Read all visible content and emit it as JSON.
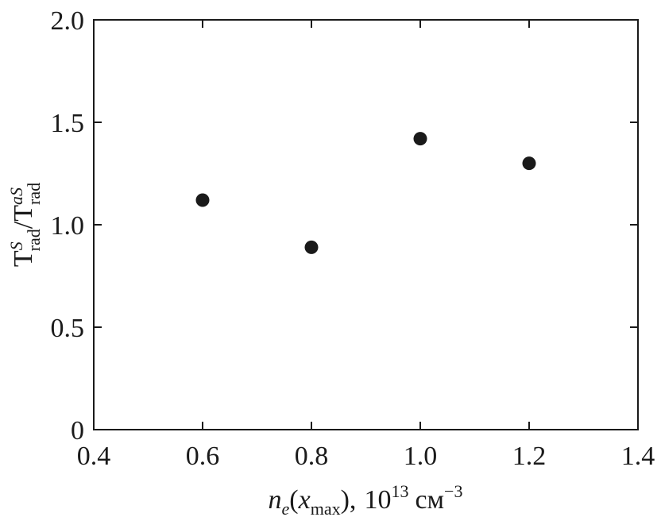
{
  "chart_data": {
    "type": "scatter",
    "x": [
      0.6,
      0.8,
      1.0,
      1.2
    ],
    "y": [
      1.12,
      0.89,
      1.42,
      1.3
    ],
    "xlim": [
      0.4,
      1.4
    ],
    "ylim": [
      0,
      2.0
    ],
    "xticks": [
      "0.4",
      "0.6",
      "0.8",
      "1.0",
      "1.2",
      "1.4"
    ],
    "yticks": [
      "0",
      "0.5",
      "1.0",
      "1.5",
      "2.0"
    ],
    "xlabel": {
      "n": "n",
      "e": "e",
      "paren_open": "(",
      "x": "x",
      "max": "max",
      "paren_close": "),",
      "base": "10",
      "exp": "13",
      "unit": "см",
      "unit_exp": "−3"
    },
    "ylabel": {
      "T1": "T",
      "sup1": "S",
      "sub1": "rad",
      "slash": "/",
      "T2": "T",
      "sup2": "aS",
      "sub2": "rad"
    },
    "grid": false,
    "marker_color": "#1a1a1a"
  }
}
